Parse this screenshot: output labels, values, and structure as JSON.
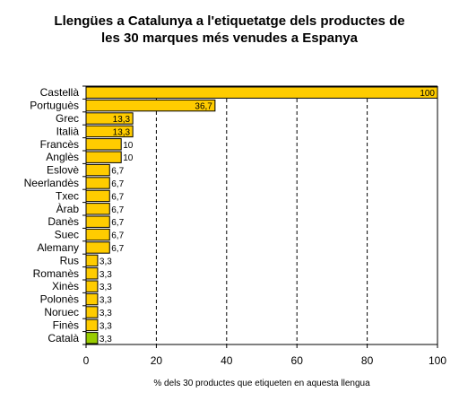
{
  "chart_data": {
    "type": "bar",
    "orientation": "horizontal",
    "title": "Llengües a Catalunya a l'etiquetatge dels productes de les 30 marques més venudes a Espanya",
    "xlabel": "% dels 30 productes que etiqueten en aquesta llengua",
    "ylabel": "",
    "xlim": [
      0,
      100
    ],
    "x_ticks": [
      "0",
      "20",
      "40",
      "60",
      "80",
      "100"
    ],
    "grid": "vertical dashed",
    "categories": [
      "Castellà",
      "Portuguès",
      "Grec",
      "Italià",
      "Francès",
      "Anglès",
      "Eslovè",
      "Neerlandès",
      "Txec",
      "Àrab",
      "Danès",
      "Suec",
      "Alemany",
      "Rus",
      "Romanès",
      "Xinès",
      "Polonès",
      "Noruec",
      "Finès",
      "Català"
    ],
    "values": [
      100,
      36.7,
      13.3,
      13.3,
      10,
      10,
      6.7,
      6.7,
      6.7,
      6.7,
      6.7,
      6.7,
      6.7,
      3.3,
      3.3,
      3.3,
      3.3,
      3.3,
      3.3,
      3.3
    ],
    "value_labels": [
      "100",
      "36,7",
      "13,3",
      "13,3",
      "10",
      "10",
      "6,7",
      "6,7",
      "6,7",
      "6,7",
      "6,7",
      "6,7",
      "6,7",
      "3,3",
      "3,3",
      "3,3",
      "3,3",
      "3,3",
      "3,3",
      "3,3"
    ],
    "bar_color": "#FFCC00",
    "highlight_color": "#99CC00",
    "highlight_category": "Català"
  }
}
